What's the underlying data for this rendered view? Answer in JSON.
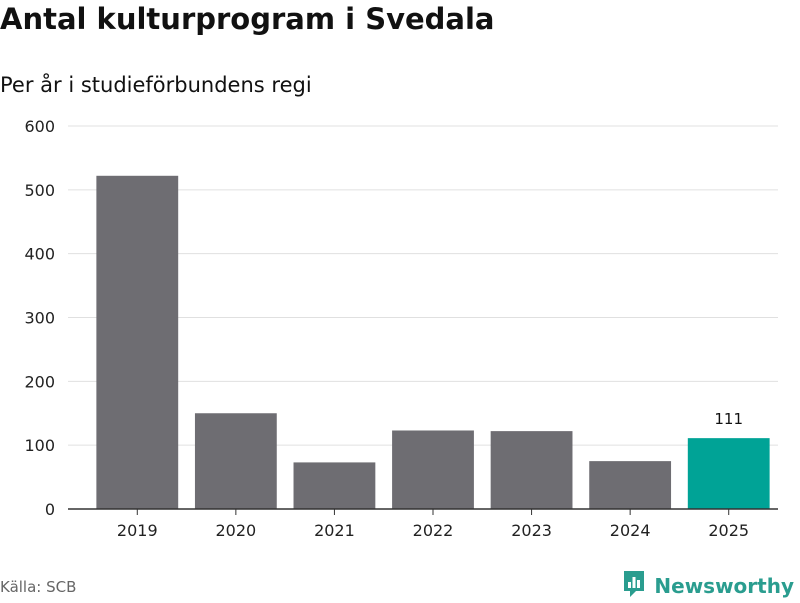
{
  "header": {
    "title": "Antal kulturprogram i Svedala",
    "subtitle": "Per år i studieförbundens regi"
  },
  "footer": {
    "source": "Källa: SCB",
    "brand": "Newsworthy",
    "brand_icon": "newsworthy-logo-icon"
  },
  "colors": {
    "bar": "#6e6d72",
    "highlight": "#00a396",
    "grid": "#e0e0e0",
    "axis": "#333333",
    "brand": "#2a9d8f"
  },
  "chart_data": {
    "type": "bar",
    "title": "Antal kulturprogram i Svedala",
    "subtitle": "Per år i studieförbundens regi",
    "xlabel": "",
    "ylabel": "",
    "categories": [
      "2019",
      "2020",
      "2021",
      "2022",
      "2023",
      "2024",
      "2025"
    ],
    "values": [
      522,
      150,
      73,
      123,
      122,
      75,
      111
    ],
    "highlight_index": 6,
    "data_labels": [
      {
        "index": 6,
        "text": "111"
      }
    ],
    "ylim": [
      0,
      600
    ],
    "yticks": [
      0,
      100,
      200,
      300,
      400,
      500,
      600
    ],
    "grid": true,
    "legend": "none"
  }
}
